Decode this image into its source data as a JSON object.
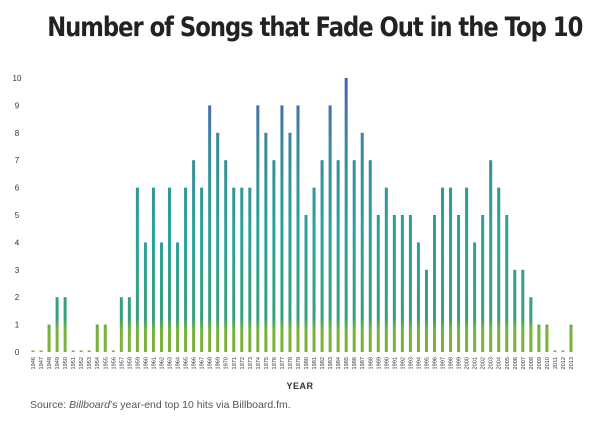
{
  "chart_data": {
    "type": "bar",
    "title": "Number of Songs that Fade Out in the Top 10",
    "xlabel": "YEAR",
    "ylabel": "",
    "ylim": [
      0,
      10
    ],
    "yticks": [
      0,
      1,
      2,
      3,
      4,
      5,
      6,
      7,
      8,
      9,
      10
    ],
    "grid": false,
    "legend": "none",
    "colors": {
      "low": "#7ab23a",
      "mid": "#2aa29a",
      "high": "#4a5fb8"
    },
    "categories": [
      "1946",
      "1947",
      "1948",
      "1949",
      "1950",
      "1951",
      "1952",
      "1953",
      "1954",
      "1955",
      "1956",
      "1957",
      "1958",
      "1959",
      "1960",
      "1961",
      "1962",
      "1963",
      "1964",
      "1965",
      "1966",
      "1967",
      "1968",
      "1969",
      "1970",
      "1971",
      "1972",
      "1973",
      "1974",
      "1975",
      "1976",
      "1977",
      "1978",
      "1979",
      "1980",
      "1981",
      "1982",
      "1983",
      "1984",
      "1985",
      "1986",
      "1987",
      "1988",
      "1989",
      "1990",
      "1991",
      "1992",
      "1993",
      "1994",
      "1995",
      "1996",
      "1997",
      "1998",
      "1999",
      "2000",
      "2001",
      "2002",
      "2003",
      "2004",
      "2005",
      "2006",
      "2007",
      "2008",
      "2009",
      "2010",
      "2011",
      "2012",
      "2013"
    ],
    "values": [
      0,
      0,
      1,
      2,
      2,
      0,
      0,
      0,
      1,
      1,
      0,
      2,
      2,
      6,
      4,
      6,
      4,
      6,
      4,
      6,
      7,
      6,
      9,
      8,
      7,
      6,
      6,
      6,
      9,
      8,
      7,
      9,
      8,
      9,
      5,
      6,
      7,
      9,
      7,
      10,
      7,
      8,
      7,
      5,
      6,
      5,
      5,
      5,
      4,
      3,
      5,
      6,
      6,
      5,
      6,
      4,
      5,
      7,
      6,
      5,
      3,
      3,
      2,
      1,
      1,
      0,
      0,
      1
    ]
  },
  "source": {
    "prefix": "Source: ",
    "italic": "Billboard",
    "suffix": "’s year-end top 10 hits via Billboard.fm."
  }
}
